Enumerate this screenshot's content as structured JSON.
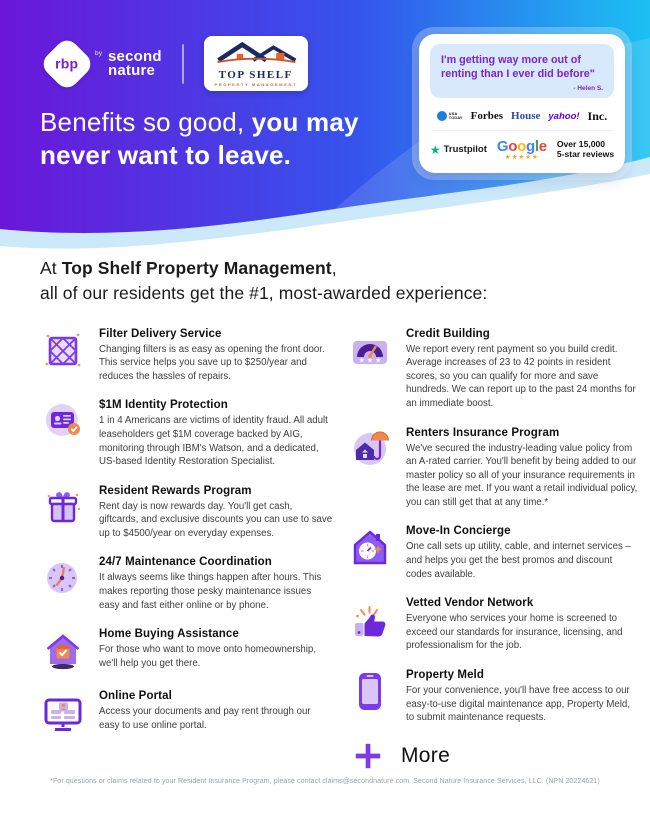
{
  "colors": {
    "hero_gradient_start": "#6B16D8",
    "hero_gradient_mid": "#3554EC",
    "hero_gradient_end": "#1BC1F2",
    "accent_purple": "#7C3AED",
    "quote_purple": "#7B24CE",
    "trustpilot_green": "#00B67A",
    "google_star_gold": "#F5A623"
  },
  "hero": {
    "brand": {
      "rbp": "rbp",
      "by": "by",
      "second": "second",
      "nature": "nature"
    },
    "partner": {
      "name": "TOP SHELF",
      "subtitle": "PROPERTY MANAGEMENT"
    },
    "headline": {
      "regular": "Benefits so good, ",
      "bold_line1": "you may",
      "bold_line2": "never want to leave."
    },
    "testimonial": {
      "quote": "I'm getting way more out of renting than I ever did before\"",
      "attribution": "- Helen S."
    },
    "press": {
      "usa_today_line1": "USA",
      "usa_today_line2": "TODAY",
      "forbes": "Forbes",
      "house": "House",
      "yahoo": "yahoo!",
      "inc": "Inc."
    },
    "reviews": {
      "trustpilot_star": "★",
      "trustpilot": "Trustpilot",
      "google_letters": [
        {
          "ch": "G",
          "color": "#4285F4"
        },
        {
          "ch": "o",
          "color": "#EA4335"
        },
        {
          "ch": "o",
          "color": "#FBBC05"
        },
        {
          "ch": "g",
          "color": "#4285F4"
        },
        {
          "ch": "l",
          "color": "#34A853"
        },
        {
          "ch": "e",
          "color": "#EA4335"
        }
      ],
      "google_stars": "★★★★★",
      "count_line1": "Over 15,000",
      "count_line2": "5-star reviews"
    }
  },
  "intro": {
    "prefix": "At ",
    "brand": "Top Shelf Property Management",
    "comma": ",",
    "line2": "all of our residents get the #1, most-awarded experience:"
  },
  "benefits_left": [
    {
      "icon": "filter-icon",
      "title": "Filter Delivery Service",
      "body": "Changing filters is as easy as opening the front door. This service helps you save up to $250/year and reduces the hassles of repairs."
    },
    {
      "icon": "identity-icon",
      "title": "$1M Identity Protection",
      "body": "1 in 4 Americans are victims of identity fraud. All adult leaseholders get $1M coverage backed by AIG, monitoring through IBM's Watson, and a dedicated, US-based Identity Restoration Specialist."
    },
    {
      "icon": "gift-icon",
      "title": "Resident Rewards Program",
      "body": "Rent day is now rewards day. You'll get cash, giftcards, and exclusive discounts you can use to save up to $4500/year on everyday expenses."
    },
    {
      "icon": "clock-icon",
      "title": "24/7 Maintenance Coordination",
      "body": "It always seems like things happen after hours. This makes reporting those pesky maintenance issues easy and fast either online or by phone."
    },
    {
      "icon": "house-check-icon",
      "title": "Home Buying Assistance",
      "body": "For those who want to move onto homeownership, we'll help you get there."
    },
    {
      "icon": "monitor-icon",
      "title": "Online Portal",
      "body": "Access your documents and pay rent through our easy to use online portal."
    }
  ],
  "benefits_right": [
    {
      "icon": "gauge-icon",
      "title": "Credit Building",
      "body": "We report every rent payment so you build credit. Average increases of 23 to 42 points in resident scores, so you can qualify for more and save hundreds. We can report up to the past 24 months for an immediate boost."
    },
    {
      "icon": "umbrella-icon",
      "title": "Renters Insurance Program",
      "body": "We've secured the industry-leading value policy from an A-rated carrier. You'll benefit by being added to our master policy so all of your insurance requirements in the lease are met. If you want a retail individual policy, you can still get that at any time.*"
    },
    {
      "icon": "concierge-icon",
      "title": "Move-In Concierge",
      "body": "One call sets up utility, cable, and internet services – and helps you get the best promos and discount codes available."
    },
    {
      "icon": "thumbs-up-icon",
      "title": "Vetted Vendor Network",
      "body": "Everyone who services your home is screened to exceed our standards for insurance, licensing, and professionalism for the job."
    },
    {
      "icon": "phone-icon",
      "title": "Property Meld",
      "body": "For your convenience, you'll have free access to our easy-to-use digital maintenance app, Property Meld, to submit maintenance requests."
    }
  ],
  "more_label": "More",
  "footnote": "*For questions or claims related to your Resident Insurance Program, please contact claims@secondnature.com. Second Nature Insurance Services, LLC. (NPN 20224621)"
}
